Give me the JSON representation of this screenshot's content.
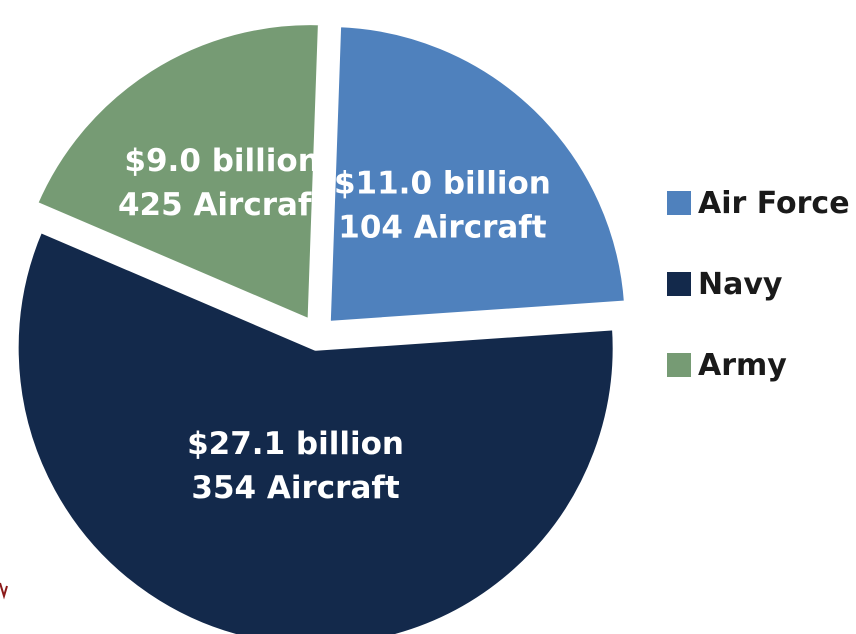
{
  "chart_data": {
    "type": "pie",
    "title": "",
    "slices": [
      {
        "name": "Air Force",
        "value": 11.0,
        "label_value": "$11.0 billion",
        "label_count": "104 Aircraft",
        "color": "#4f81bd"
      },
      {
        "name": "Navy",
        "value": 27.1,
        "label_value": "$27.1 billion",
        "label_count": "354 Aircraft",
        "color": "#13294b"
      },
      {
        "name": "Army",
        "value": 9.0,
        "label_value": "$9.0 billion",
        "label_count": "425 Aircraft",
        "color": "#769b74"
      }
    ],
    "legend_position": "right"
  },
  "colors": {
    "background": "#ffffff",
    "separator": "#ffffff",
    "legend_text": "#1a1a1a",
    "edge_mark": "#8b1a1a"
  }
}
